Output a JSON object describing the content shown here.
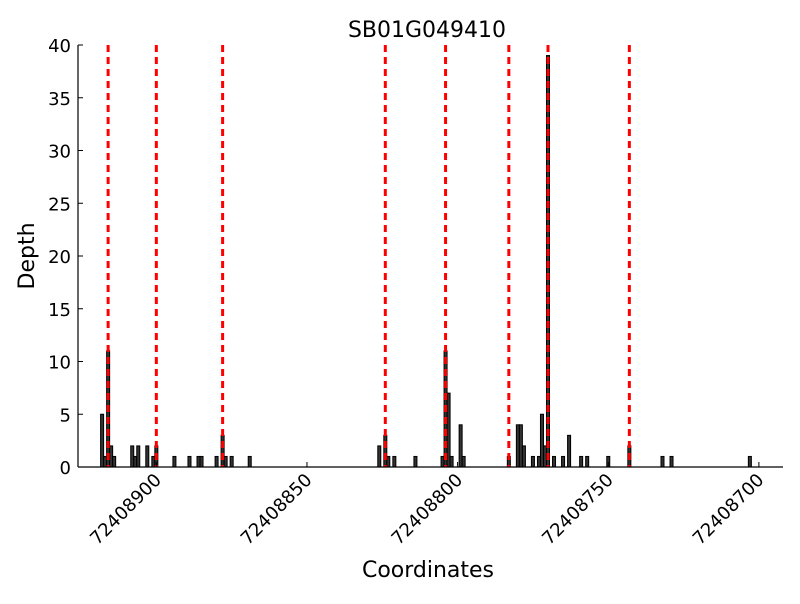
{
  "chart_data": {
    "type": "bar",
    "title": "SB01G049410",
    "xlabel": "Coordinates",
    "ylabel": "Depth",
    "xlim": [
      72408926,
      72408692
    ],
    "ylim": [
      0,
      40
    ],
    "x_ticks": [
      72408900,
      72408850,
      72408800,
      72408750,
      72408700
    ],
    "x_tick_labels": [
      "72408900",
      "72408850",
      "72408800",
      "72408750",
      "72408700"
    ],
    "y_ticks": [
      0,
      5,
      10,
      15,
      20,
      25,
      30,
      35,
      40
    ],
    "y_tick_labels": [
      "0",
      "5",
      "10",
      "15",
      "20",
      "25",
      "30",
      "35",
      "40"
    ],
    "grid": false,
    "bar_color": "#333333",
    "marker_color": "#ff0000",
    "bars": [
      {
        "x": 72408918,
        "y": 5
      },
      {
        "x": 72408917,
        "y": 1
      },
      {
        "x": 72408916,
        "y": 11
      },
      {
        "x": 72408915,
        "y": 2
      },
      {
        "x": 72408914,
        "y": 1
      },
      {
        "x": 72408908,
        "y": 2
      },
      {
        "x": 72408907,
        "y": 1
      },
      {
        "x": 72408906,
        "y": 2
      },
      {
        "x": 72408903,
        "y": 2
      },
      {
        "x": 72408901,
        "y": 1
      },
      {
        "x": 72408900,
        "y": 2
      },
      {
        "x": 72408894,
        "y": 1
      },
      {
        "x": 72408889,
        "y": 1
      },
      {
        "x": 72408886,
        "y": 1
      },
      {
        "x": 72408885,
        "y": 1
      },
      {
        "x": 72408880,
        "y": 1
      },
      {
        "x": 72408878,
        "y": 3
      },
      {
        "x": 72408877,
        "y": 1
      },
      {
        "x": 72408875,
        "y": 1
      },
      {
        "x": 72408869,
        "y": 1
      },
      {
        "x": 72408826,
        "y": 2
      },
      {
        "x": 72408824,
        "y": 3
      },
      {
        "x": 72408823,
        "y": 1
      },
      {
        "x": 72408821,
        "y": 1
      },
      {
        "x": 72408814,
        "y": 1
      },
      {
        "x": 72408805,
        "y": 1
      },
      {
        "x": 72408804,
        "y": 11
      },
      {
        "x": 72408803,
        "y": 7
      },
      {
        "x": 72408802,
        "y": 1
      },
      {
        "x": 72408799,
        "y": 4
      },
      {
        "x": 72408798,
        "y": 1
      },
      {
        "x": 72408783,
        "y": 1
      },
      {
        "x": 72408780,
        "y": 4
      },
      {
        "x": 72408779,
        "y": 4
      },
      {
        "x": 72408778,
        "y": 2
      },
      {
        "x": 72408775,
        "y": 1
      },
      {
        "x": 72408773,
        "y": 1
      },
      {
        "x": 72408772,
        "y": 5
      },
      {
        "x": 72408771,
        "y": 2
      },
      {
        "x": 72408770,
        "y": 39
      },
      {
        "x": 72408768,
        "y": 1
      },
      {
        "x": 72408765,
        "y": 1
      },
      {
        "x": 72408763,
        "y": 3
      },
      {
        "x": 72408759,
        "y": 1
      },
      {
        "x": 72408757,
        "y": 1
      },
      {
        "x": 72408750,
        "y": 1
      },
      {
        "x": 72408743,
        "y": 2
      },
      {
        "x": 72408732,
        "y": 1
      },
      {
        "x": 72408729,
        "y": 1
      },
      {
        "x": 72408703,
        "y": 1
      }
    ],
    "vertical_markers": [
      72408916,
      72408900,
      72408878,
      72408824,
      72408804,
      72408783,
      72408770,
      72408743
    ]
  }
}
